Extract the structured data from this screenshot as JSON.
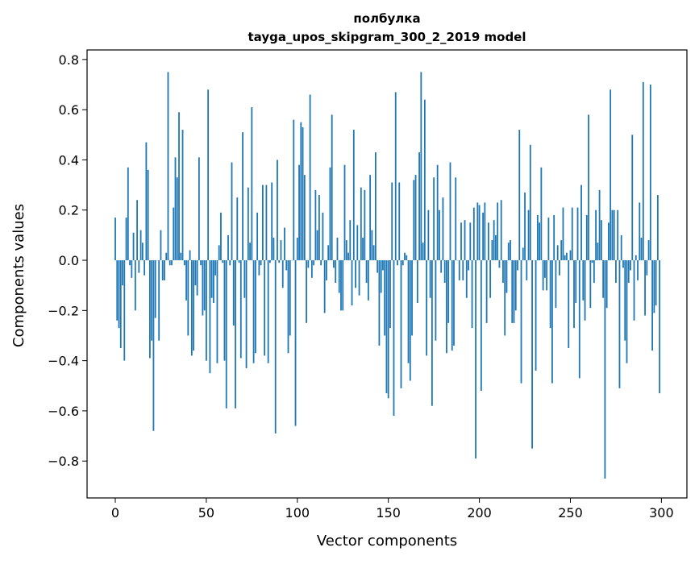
{
  "chart_data": {
    "type": "bar",
    "title": "полбулка",
    "subtitle": "tayga_upos_skipgram_300_2_2019 model",
    "xlabel": "Vector components",
    "ylabel": "Components values",
    "xlim": [
      -15.5,
      314
    ],
    "ylim": [
      -0.947,
      0.838
    ],
    "xticks": [
      0,
      50,
      100,
      150,
      200,
      250,
      300
    ],
    "xtick_labels": [
      "0",
      "50",
      "100",
      "150",
      "200",
      "250",
      "300"
    ],
    "yticks": [
      -0.8,
      -0.6,
      -0.4,
      -0.2,
      0.0,
      0.2,
      0.4,
      0.6,
      0.8
    ],
    "ytick_labels": [
      "−0.8",
      "−0.6",
      "−0.4",
      "−0.2",
      "0.0",
      "0.2",
      "0.4",
      "0.6",
      "0.8"
    ],
    "grid": false,
    "bar_color": "#1f77b4",
    "values": [
      0.17,
      -0.24,
      -0.27,
      -0.35,
      -0.1,
      -0.4,
      0.17,
      0.37,
      -0.02,
      -0.07,
      0.11,
      -0.2,
      0.24,
      -0.05,
      0.12,
      0.07,
      -0.06,
      0.47,
      0.36,
      -0.39,
      -0.32,
      -0.68,
      -0.23,
      0.0,
      -0.32,
      0.12,
      -0.08,
      -0.08,
      0.03,
      0.75,
      -0.02,
      -0.02,
      0.21,
      0.41,
      0.33,
      0.59,
      0.03,
      0.52,
      -0.02,
      -0.16,
      -0.3,
      0.04,
      -0.38,
      -0.36,
      -0.1,
      -0.14,
      0.41,
      -0.02,
      -0.22,
      -0.2,
      -0.4,
      0.68,
      -0.45,
      -0.15,
      -0.17,
      -0.06,
      -0.41,
      0.06,
      0.19,
      -0.01,
      -0.4,
      -0.59,
      0.1,
      -0.02,
      0.39,
      -0.26,
      -0.59,
      0.25,
      -0.01,
      -0.39,
      0.51,
      -0.15,
      -0.43,
      0.29,
      0.07,
      0.61,
      -0.41,
      -0.37,
      0.19,
      -0.06,
      -0.02,
      0.3,
      -0.38,
      0.3,
      -0.41,
      -0.01,
      0.31,
      0.09,
      -0.69,
      0.4,
      -0.01,
      0.08,
      -0.11,
      0.13,
      -0.04,
      -0.37,
      -0.3,
      0.0,
      0.56,
      -0.66,
      0.09,
      0.38,
      0.55,
      0.53,
      0.34,
      -0.25,
      -0.03,
      0.66,
      -0.07,
      -0.02,
      0.28,
      0.12,
      0.26,
      -0.02,
      0.19,
      -0.21,
      -0.08,
      0.06,
      0.37,
      0.58,
      -0.03,
      -0.09,
      0.09,
      -0.13,
      -0.2,
      -0.2,
      0.38,
      0.08,
      0.03,
      0.16,
      -0.18,
      0.52,
      -0.11,
      0.14,
      -0.14,
      0.29,
      0.09,
      0.28,
      -0.09,
      -0.16,
      0.34,
      0.12,
      0.06,
      0.43,
      -0.05,
      -0.34,
      -0.13,
      -0.04,
      -0.3,
      -0.53,
      -0.55,
      -0.27,
      0.31,
      -0.62,
      0.67,
      -0.02,
      0.31,
      -0.51,
      -0.02,
      0.03,
      0.02,
      -0.41,
      -0.48,
      -0.3,
      0.32,
      0.34,
      -0.17,
      0.43,
      0.75,
      0.07,
      0.64,
      -0.38,
      0.2,
      -0.15,
      -0.58,
      0.33,
      -0.32,
      0.38,
      0.2,
      -0.05,
      0.25,
      -0.09,
      -0.37,
      -0.25,
      0.39,
      -0.36,
      -0.34,
      0.33,
      0.0,
      -0.08,
      0.15,
      -0.08,
      0.16,
      -0.15,
      -0.04,
      0.15,
      -0.27,
      0.21,
      -0.79,
      0.23,
      0.22,
      -0.52,
      0.19,
      0.23,
      -0.25,
      0.15,
      -0.15,
      0.08,
      0.16,
      0.1,
      0.23,
      -0.03,
      0.24,
      -0.09,
      -0.3,
      -0.13,
      0.07,
      0.08,
      -0.25,
      -0.25,
      -0.2,
      -0.04,
      0.52,
      -0.49,
      0.05,
      0.27,
      -0.08,
      0.2,
      0.46,
      -0.75,
      0.0,
      -0.44,
      0.18,
      0.15,
      0.37,
      -0.12,
      -0.07,
      -0.12,
      0.17,
      -0.27,
      -0.49,
      0.18,
      -0.19,
      0.06,
      -0.06,
      0.08,
      0.21,
      0.02,
      0.03,
      -0.35,
      0.04,
      0.21,
      -0.27,
      -0.17,
      0.21,
      -0.47,
      0.3,
      -0.16,
      -0.24,
      0.18,
      0.58,
      -0.19,
      -0.01,
      -0.09,
      0.2,
      0.07,
      0.28,
      0.16,
      -0.15,
      -0.87,
      -0.19,
      0.15,
      0.68,
      0.2,
      0.2,
      -0.09,
      0.2,
      -0.51,
      0.1,
      -0.03,
      -0.32,
      -0.41,
      -0.09,
      -0.04,
      0.5,
      -0.24,
      0.02,
      -0.08,
      0.23,
      0.09,
      0.71,
      -0.22,
      -0.06,
      0.08,
      0.7,
      -0.36,
      -0.21,
      -0.18,
      0.26,
      -0.53
    ]
  }
}
